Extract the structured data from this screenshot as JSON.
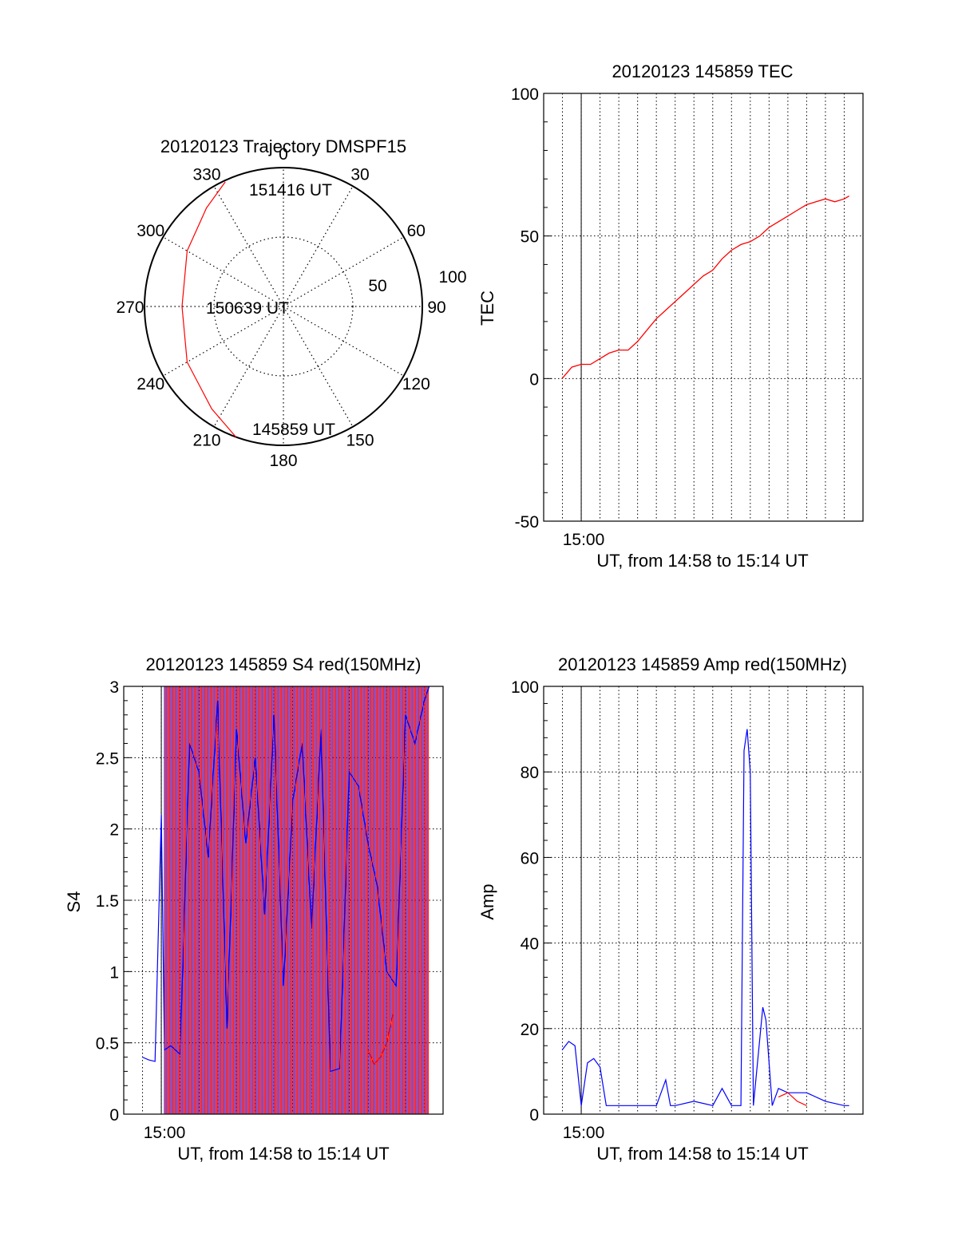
{
  "chart_data": [
    {
      "type": "polar",
      "title": "20120123 Trajectory DMSPF15",
      "angle_labels": [
        {
          "angle": 0,
          "label": "0"
        },
        {
          "angle": 30,
          "label": "30"
        },
        {
          "angle": 60,
          "label": "60"
        },
        {
          "angle": 90,
          "label": "90"
        },
        {
          "angle": 120,
          "label": "120"
        },
        {
          "angle": 150,
          "label": "150"
        },
        {
          "angle": 180,
          "label": "180"
        },
        {
          "angle": 210,
          "label": "210"
        },
        {
          "angle": 240,
          "label": "240"
        },
        {
          "angle": 270,
          "label": "270"
        },
        {
          "angle": 300,
          "label": "300"
        },
        {
          "angle": 330,
          "label": "330"
        }
      ],
      "radial_labels": [
        "50",
        "100"
      ],
      "radial_max": 100,
      "track_color": "#ff0000",
      "track": [
        {
          "azimuth": 200,
          "zenith": 100
        },
        {
          "azimuth": 215,
          "zenith": 90
        },
        {
          "azimuth": 240,
          "zenith": 80
        },
        {
          "azimuth": 270,
          "zenith": 73
        },
        {
          "azimuth": 300,
          "zenith": 80
        },
        {
          "azimuth": 322,
          "zenith": 90
        },
        {
          "azimuth": 335,
          "zenith": 99
        }
      ],
      "annotations": {
        "start": "145859 UT",
        "middle": "150639 UT",
        "end": "151416 UT"
      }
    },
    {
      "type": "line",
      "title": "20120123 145859 TEC",
      "xlabel": "UT, from 14:58 to 15:14 UT",
      "ylabel": "TEC",
      "x_tick_label": "15:00",
      "xlim": [
        "14:58",
        "15:14"
      ],
      "ylim": [
        -50,
        100
      ],
      "y_ticks": [
        "-50",
        "0",
        "50",
        "100"
      ],
      "grid": true,
      "series": [
        {
          "color": "#ff0000",
          "x": [
            "14:58:59",
            "14:59:30",
            "15:00:00",
            "15:00:30",
            "15:01:00",
            "15:01:30",
            "15:02:00",
            "15:02:30",
            "15:03:00",
            "15:03:30",
            "15:04:00",
            "15:04:30",
            "15:05:00",
            "15:05:30",
            "15:06:00",
            "15:06:30",
            "15:07:00",
            "15:07:30",
            "15:08:00",
            "15:08:30",
            "15:09:00",
            "15:09:30",
            "15:10:00",
            "15:10:30",
            "15:11:00",
            "15:11:30",
            "15:12:00",
            "15:12:30",
            "15:13:00",
            "15:13:30",
            "15:14:00",
            "15:14:16"
          ],
          "values": [
            0,
            4,
            5,
            5,
            7,
            9,
            10,
            10,
            13,
            17,
            21,
            24,
            27,
            30,
            33,
            36,
            38,
            42,
            45,
            47,
            48,
            50,
            53,
            55,
            57,
            59,
            61,
            62,
            63,
            62,
            63,
            64
          ]
        }
      ]
    },
    {
      "type": "line",
      "title": "20120123 145859 S4 red(150MHz)",
      "xlabel": "UT, from 14:58 to 15:14 UT",
      "ylabel": "S4",
      "x_tick_label": "15:00",
      "xlim": [
        "14:58",
        "15:14"
      ],
      "ylim": [
        0,
        3
      ],
      "y_ticks": [
        "0",
        "0.5",
        "1",
        "1.5",
        "2",
        "2.5",
        "3"
      ],
      "grid": true,
      "series": [
        {
          "color": "#0000ff",
          "x": [
            "14:58:59",
            "14:59:20",
            "14:59:40",
            "15:00:00",
            "15:00:10",
            "15:00:30",
            "15:01:00",
            "15:01:30",
            "15:02:00",
            "15:02:30",
            "15:03:00",
            "15:03:30",
            "15:04:00",
            "15:04:30",
            "15:05:00",
            "15:05:30",
            "15:06:00",
            "15:06:30",
            "15:07:00",
            "15:07:30",
            "15:08:00",
            "15:08:30",
            "15:09:00",
            "15:09:30",
            "15:10:00",
            "15:10:30",
            "15:11:00",
            "15:11:30",
            "15:12:00",
            "15:12:30",
            "15:13:00",
            "15:13:30",
            "15:14:00",
            "15:14:16"
          ],
          "values": [
            0.4,
            0.38,
            0.37,
            2.1,
            0.45,
            0.48,
            0.42,
            2.6,
            2.4,
            1.8,
            2.9,
            0.6,
            2.7,
            1.9,
            2.5,
            1.4,
            2.8,
            0.9,
            2.2,
            2.6,
            1.3,
            2.7,
            0.3,
            0.32,
            2.4,
            2.3,
            1.9,
            1.6,
            1.0,
            0.9,
            2.8,
            2.6,
            2.9,
            3.0
          ]
        },
        {
          "color": "#ff0000",
          "x": [
            "15:11:00",
            "15:11:20",
            "15:11:40",
            "15:12:00",
            "15:12:20"
          ],
          "values": [
            0.45,
            0.35,
            0.4,
            0.5,
            0.7
          ]
        }
      ]
    },
    {
      "type": "line",
      "title": "20120123 145859 Amp red(150MHz)",
      "xlabel": "UT, from 14:58 to 15:14 UT",
      "ylabel": "Amp",
      "x_tick_label": "15:00",
      "xlim": [
        "14:58",
        "15:14"
      ],
      "ylim": [
        0,
        100
      ],
      "y_ticks": [
        "0",
        "20",
        "40",
        "60",
        "80",
        "100"
      ],
      "grid": true,
      "series": [
        {
          "color": "#0000ff",
          "x": [
            "14:58:59",
            "14:59:20",
            "14:59:40",
            "15:00:00",
            "15:00:20",
            "15:00:40",
            "15:01:00",
            "15:01:20",
            "15:01:40",
            "15:02:00",
            "15:03:00",
            "15:04:00",
            "15:04:30",
            "15:04:45",
            "15:05:00",
            "15:06:00",
            "15:07:00",
            "15:07:30",
            "15:08:00",
            "15:08:30",
            "15:08:40",
            "15:08:50",
            "15:09:00",
            "15:09:10",
            "15:09:40",
            "15:09:50",
            "15:10:10",
            "15:10:30",
            "15:11:00",
            "15:12:00",
            "15:13:00",
            "15:14:00",
            "15:14:16"
          ],
          "values": [
            15,
            17,
            16,
            2,
            12,
            13,
            11,
            2,
            2,
            2,
            2,
            2,
            8,
            2,
            2,
            3,
            2,
            6,
            2,
            2,
            85,
            90,
            80,
            2,
            25,
            22,
            2,
            6,
            5,
            5,
            3,
            2,
            2
          ]
        },
        {
          "color": "#ff0000",
          "x": [
            "15:10:30",
            "15:11:00",
            "15:11:30",
            "15:12:00"
          ],
          "values": [
            4,
            5,
            3,
            2
          ]
        }
      ]
    }
  ]
}
